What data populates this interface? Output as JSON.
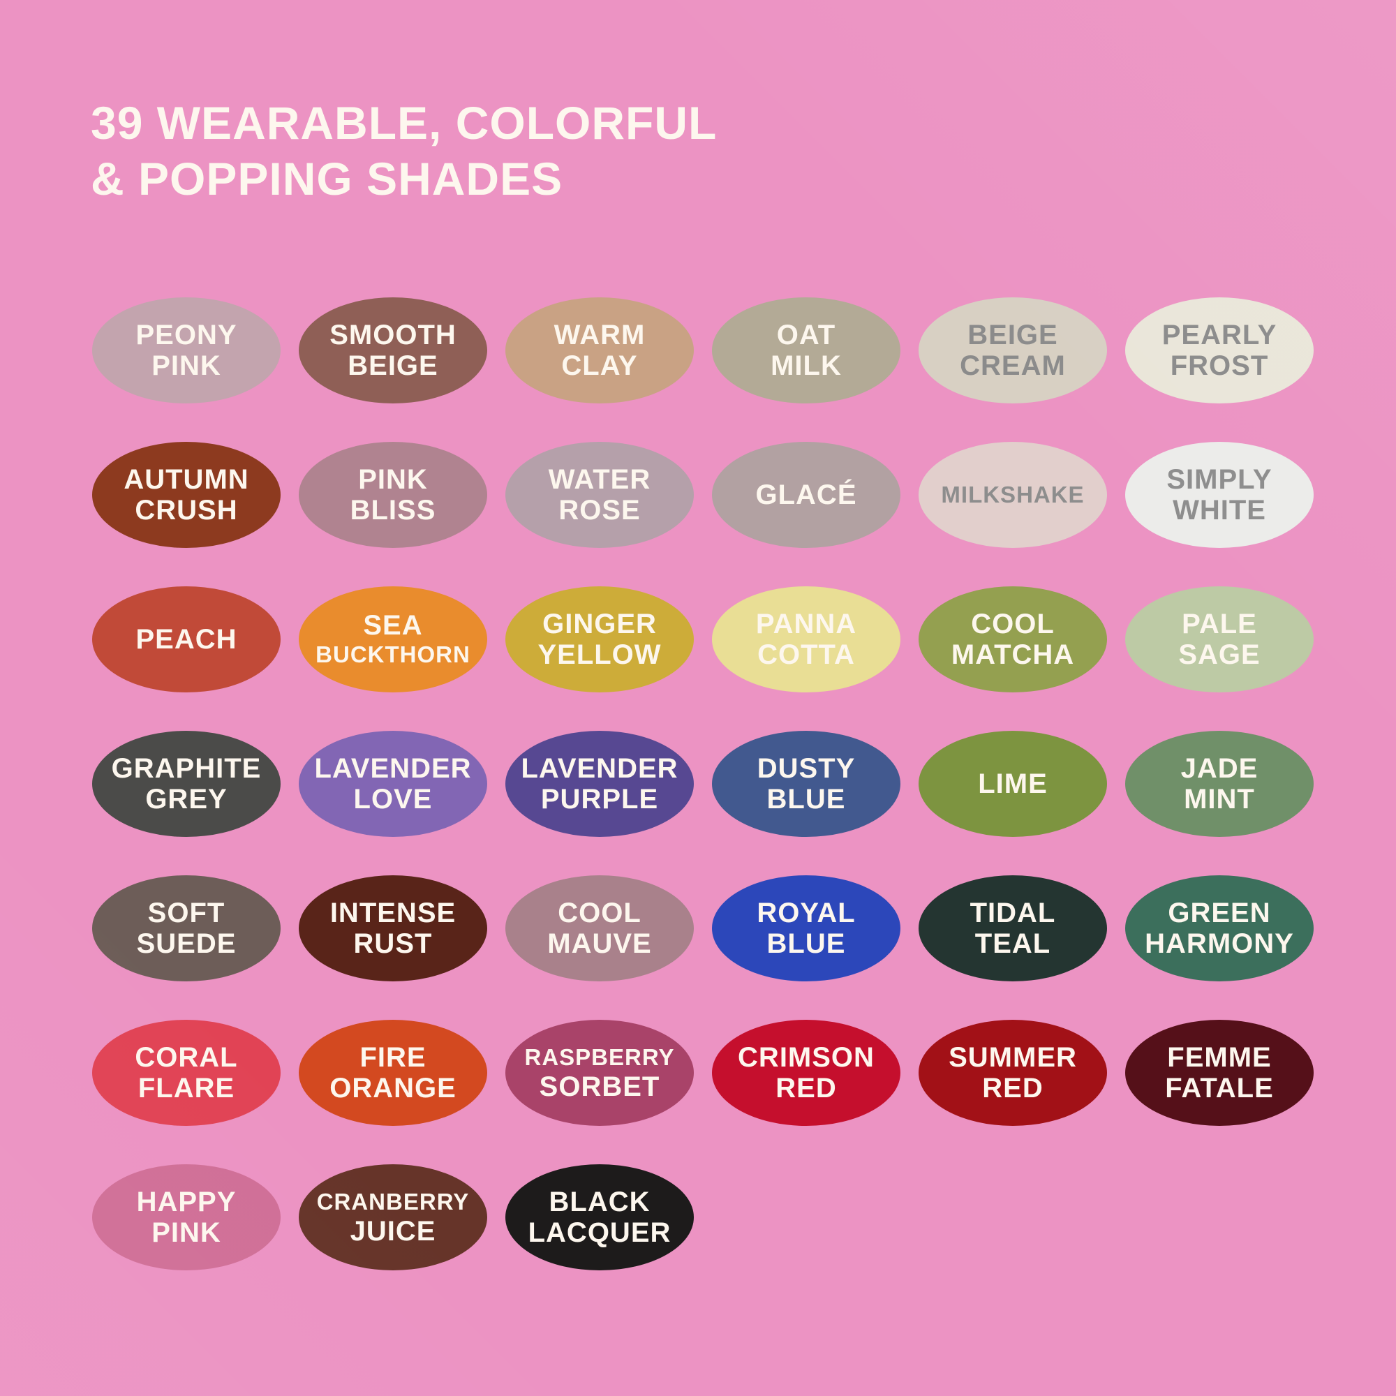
{
  "page": {
    "background": "#ec93c3",
    "title_color": "#fdf7ee"
  },
  "title": {
    "line1": "39 WEARABLE, COLORFUL",
    "line2": "& POPPING SHADES"
  },
  "swatches": [
    {
      "label": "PEONY PINK",
      "lines": [
        "PEONY",
        "PINK"
      ],
      "bg": "#c3a4ae",
      "text": "#fdf7ee"
    },
    {
      "label": "SMOOTH BEIGE",
      "lines": [
        "SMOOTH",
        "BEIGE"
      ],
      "bg": "#8f5f56",
      "text": "#fdf7ee"
    },
    {
      "label": "WARM CLAY",
      "lines": [
        "WARM",
        "CLAY"
      ],
      "bg": "#c9a284",
      "text": "#fdf7ee"
    },
    {
      "label": "OAT MILK",
      "lines": [
        "OAT",
        "MILK"
      ],
      "bg": "#b3aa96",
      "text": "#fdf7ee"
    },
    {
      "label": "BEIGE CREAM",
      "lines": [
        "BEIGE",
        "CREAM"
      ],
      "bg": "#d8d0c3",
      "text": "#8b8b8b"
    },
    {
      "label": "PEARLY FROST",
      "lines": [
        "PEARLY",
        "FROST"
      ],
      "bg": "#eae6d9",
      "text": "#8b8b8b"
    },
    {
      "label": "AUTUMN CRUSH",
      "lines": [
        "AUTUMN",
        "CRUSH"
      ],
      "bg": "#8d3a1f",
      "text": "#fdf7ee"
    },
    {
      "label": "PINK BLISS",
      "lines": [
        "PINK",
        "BLISS"
      ],
      "bg": "#b08390",
      "text": "#fdf7ee"
    },
    {
      "label": "WATER ROSE",
      "lines": [
        "WATER",
        "ROSE"
      ],
      "bg": "#b5a0aa",
      "text": "#fdf7ee"
    },
    {
      "label": "GLACÉ",
      "lines": [
        "GLACÉ"
      ],
      "bg": "#b2a1a2",
      "text": "#fdf7ee"
    },
    {
      "label": "MILKSHAKE",
      "lines": [
        "MILKSHAKE"
      ],
      "bg": "#e2cfcc",
      "text": "#8d8d8d"
    },
    {
      "label": "SIMPLY WHITE",
      "lines": [
        "SIMPLY",
        "WHITE"
      ],
      "bg": "#ececea",
      "text": "#8d8d8d"
    },
    {
      "label": "PEACH",
      "lines": [
        "PEACH"
      ],
      "bg": "#c14a38",
      "text": "#fdf7ee"
    },
    {
      "label": "SEA BUCKTHORN",
      "lines": [
        "SEA",
        "BUCKTHORN"
      ],
      "bg": "#e98c2d",
      "text": "#fdf7ee"
    },
    {
      "label": "GINGER YELLOW",
      "lines": [
        "GINGER",
        "YELLOW"
      ],
      "bg": "#cdac39",
      "text": "#fdf7ee"
    },
    {
      "label": "PANNA COTTA",
      "lines": [
        "PANNA",
        "COTTA"
      ],
      "bg": "#e9de95",
      "text": "#fdf7ee"
    },
    {
      "label": "COOL MATCHA",
      "lines": [
        "COOL",
        "MATCHA"
      ],
      "bg": "#94a050",
      "text": "#fdf7ee"
    },
    {
      "label": "PALE SAGE",
      "lines": [
        "PALE",
        "SAGE"
      ],
      "bg": "#bdcaa5",
      "text": "#fdf7ee"
    },
    {
      "label": "GRAPHITE GREY",
      "lines": [
        "GRAPHITE",
        "GREY"
      ],
      "bg": "#4b4b49",
      "text": "#fdf7ee"
    },
    {
      "label": "LAVENDER LOVE",
      "lines": [
        "LAVENDER",
        "LOVE"
      ],
      "bg": "#8266b4",
      "text": "#fdf7ee"
    },
    {
      "label": "LAVENDER PURPLE",
      "lines": [
        "LAVENDER",
        "PURPLE"
      ],
      "bg": "#574892",
      "text": "#fdf7ee"
    },
    {
      "label": "DUSTY BLUE",
      "lines": [
        "DUSTY",
        "BLUE"
      ],
      "bg": "#42598f",
      "text": "#fdf7ee"
    },
    {
      "label": "LIME",
      "lines": [
        "LIME"
      ],
      "bg": "#7d9440",
      "text": "#fdf7ee"
    },
    {
      "label": "JADE MINT",
      "lines": [
        "JADE",
        "MINT"
      ],
      "bg": "#709069",
      "text": "#fdf7ee"
    },
    {
      "label": "SOFT SUEDE",
      "lines": [
        "SOFT",
        "SUEDE"
      ],
      "bg": "#6d5d58",
      "text": "#fdf7ee"
    },
    {
      "label": "INTENSE RUST",
      "lines": [
        "INTENSE",
        "RUST"
      ],
      "bg": "#592419",
      "text": "#fdf7ee"
    },
    {
      "label": "COOL MAUVE",
      "lines": [
        "COOL",
        "MAUVE"
      ],
      "bg": "#a9818b",
      "text": "#fdf7ee"
    },
    {
      "label": "ROYAL BLUE",
      "lines": [
        "ROYAL",
        "BLUE"
      ],
      "bg": "#2c47ba",
      "text": "#fdf7ee"
    },
    {
      "label": "TIDAL TEAL",
      "lines": [
        "TIDAL",
        "TEAL"
      ],
      "bg": "#243531",
      "text": "#fdf7ee"
    },
    {
      "label": "GREEN HARMONY",
      "lines": [
        "GREEN",
        "HARMONY"
      ],
      "bg": "#3c6f5c",
      "text": "#fdf7ee"
    },
    {
      "label": "CORAL FLARE",
      "lines": [
        "CORAL",
        "FLARE"
      ],
      "bg": "#e14355",
      "text": "#fdf7ee"
    },
    {
      "label": "FIRE ORANGE",
      "lines": [
        "FIRE",
        "ORANGE"
      ],
      "bg": "#d34920",
      "text": "#fdf7ee"
    },
    {
      "label": "RASPBERRY SORBET",
      "lines": [
        "RASPBERRY",
        "SORBET"
      ],
      "bg": "#a94369",
      "text": "#fdf7ee"
    },
    {
      "label": "CRIMSON RED",
      "lines": [
        "CRIMSON",
        "RED"
      ],
      "bg": "#c50f2d",
      "text": "#fdf7ee"
    },
    {
      "label": "SUMMER RED",
      "lines": [
        "SUMMER",
        "RED"
      ],
      "bg": "#a21117",
      "text": "#fdf7ee"
    },
    {
      "label": "FEMME FATALE",
      "lines": [
        "FEMME",
        "FATALE"
      ],
      "bg": "#551019",
      "text": "#fdf7ee"
    },
    {
      "label": "HAPPY PINK",
      "lines": [
        "HAPPY",
        "PINK"
      ],
      "bg": "#d06f97",
      "text": "#fdf7ee"
    },
    {
      "label": "CRANBERRY JUICE",
      "lines": [
        "CRANBERRY",
        "JUICE"
      ],
      "bg": "#663429",
      "text": "#fdf7ee"
    },
    {
      "label": "BLACK LACQUER",
      "lines": [
        "BLACK",
        "LACQUER"
      ],
      "bg": "#1d1b1b",
      "text": "#fdf7ee"
    }
  ]
}
